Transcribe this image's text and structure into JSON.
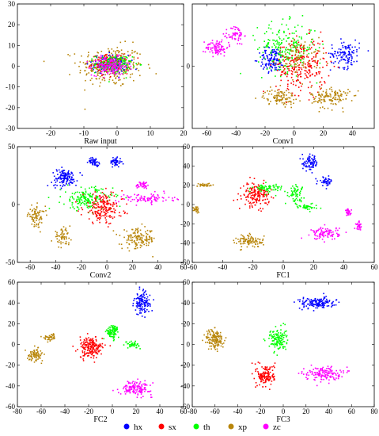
{
  "legend": [
    {
      "name": "hx",
      "color": "#0000ff"
    },
    {
      "name": "sx",
      "color": "#ff0000"
    },
    {
      "name": "th",
      "color": "#00ff00"
    },
    {
      "name": "xp",
      "color": "#b8860b"
    },
    {
      "name": "zc",
      "color": "#ff00ff"
    }
  ],
  "chart_data": [
    {
      "type": "scatter",
      "title": "",
      "xlabel": "Raw input",
      "ylabel": "",
      "xlim": [
        -30,
        20
      ],
      "ylim": [
        -30,
        30
      ],
      "xticks": [
        -20,
        -10,
        0,
        10,
        20
      ],
      "yticks": [
        -30,
        -20,
        -10,
        0,
        10,
        20,
        30
      ],
      "grid": false,
      "clusters": [
        {
          "class": "xp",
          "center": [
            -2,
            0
          ],
          "spread": [
            9,
            9
          ],
          "count": 260
        },
        {
          "class": "hx",
          "center": [
            -2,
            1
          ],
          "spread": [
            5,
            4
          ],
          "count": 150
        },
        {
          "class": "sx",
          "center": [
            -2,
            1
          ],
          "spread": [
            5,
            4
          ],
          "count": 150
        },
        {
          "class": "th",
          "center": [
            -1,
            1
          ],
          "spread": [
            5,
            4
          ],
          "count": 150
        },
        {
          "class": "zc",
          "center": [
            -2,
            0
          ],
          "spread": [
            5,
            4
          ],
          "count": 150
        }
      ]
    },
    {
      "type": "scatter",
      "title": "",
      "xlabel": "Conv1",
      "ylabel": "",
      "xlim": [
        -70,
        55
      ],
      "ylim": [
        -50,
        50
      ],
      "xticks": [
        -60,
        -40,
        -20,
        0,
        20,
        40
      ],
      "yticks": [
        0
      ],
      "grid": false,
      "clusters": [
        {
          "class": "zc",
          "center": [
            -53,
            15
          ],
          "spread": [
            7,
            6
          ],
          "count": 90
        },
        {
          "class": "zc",
          "center": [
            -40,
            25
          ],
          "spread": [
            5,
            7
          ],
          "count": 60
        },
        {
          "class": "hx",
          "center": [
            -15,
            5
          ],
          "spread": [
            8,
            9
          ],
          "count": 120
        },
        {
          "class": "hx",
          "center": [
            35,
            10
          ],
          "spread": [
            9,
            10
          ],
          "count": 120
        },
        {
          "class": "th",
          "center": [
            -5,
            15
          ],
          "spread": [
            18,
            18
          ],
          "count": 220
        },
        {
          "class": "sx",
          "center": [
            5,
            0
          ],
          "spread": [
            16,
            20
          ],
          "count": 240
        },
        {
          "class": "xp",
          "center": [
            -10,
            -25
          ],
          "spread": [
            10,
            6
          ],
          "count": 100
        },
        {
          "class": "xp",
          "center": [
            25,
            -25
          ],
          "spread": [
            12,
            8
          ],
          "count": 130
        },
        {
          "class": "xp",
          "center": [
            5,
            8
          ],
          "spread": [
            14,
            14
          ],
          "count": 80
        }
      ]
    },
    {
      "type": "scatter",
      "title": "",
      "xlabel": "Conv2",
      "ylabel": "",
      "xlim": [
        -70,
        60
      ],
      "ylim": [
        -50,
        50
      ],
      "xticks": [
        -60,
        -40,
        -20,
        0,
        20,
        40,
        60
      ],
      "yticks": [
        -50,
        0,
        50
      ],
      "grid": false,
      "clusters": [
        {
          "class": "hx",
          "center": [
            -33,
            23
          ],
          "spread": [
            9,
            7
          ],
          "count": 130
        },
        {
          "class": "hx",
          "center": [
            -10,
            37
          ],
          "spread": [
            4,
            3
          ],
          "count": 50
        },
        {
          "class": "hx",
          "center": [
            7,
            37
          ],
          "spread": [
            4,
            4
          ],
          "count": 50
        },
        {
          "class": "zc",
          "center": [
            28,
            17
          ],
          "spread": [
            5,
            3
          ],
          "count": 40
        },
        {
          "class": "zc",
          "center": [
            30,
            5
          ],
          "spread": [
            20,
            4
          ],
          "count": 90
        },
        {
          "class": "th",
          "center": [
            -15,
            5
          ],
          "spread": [
            18,
            9
          ],
          "count": 170
        },
        {
          "class": "sx",
          "center": [
            -3,
            -3
          ],
          "spread": [
            14,
            12
          ],
          "count": 190
        },
        {
          "class": "xp",
          "center": [
            -55,
            -10
          ],
          "spread": [
            6,
            8
          ],
          "count": 80
        },
        {
          "class": "xp",
          "center": [
            -35,
            -28
          ],
          "spread": [
            6,
            6
          ],
          "count": 60
        },
        {
          "class": "xp",
          "center": [
            25,
            -30
          ],
          "spread": [
            12,
            8
          ],
          "count": 140
        }
      ]
    },
    {
      "type": "scatter",
      "title": "",
      "xlabel": "FC1",
      "ylabel": "",
      "xlim": [
        -60,
        60
      ],
      "ylim": [
        -60,
        60
      ],
      "xticks": [
        -60,
        -40,
        -20,
        0,
        20,
        40,
        60
      ],
      "yticks": [
        -60,
        -40,
        -20,
        0,
        20,
        40,
        60
      ],
      "grid": false,
      "clusters": [
        {
          "class": "hx",
          "center": [
            18,
            43
          ],
          "spread": [
            5,
            7
          ],
          "count": 80
        },
        {
          "class": "hx",
          "center": [
            28,
            24
          ],
          "spread": [
            4,
            4
          ],
          "count": 40
        },
        {
          "class": "sx",
          "center": [
            -18,
            10
          ],
          "spread": [
            8,
            11
          ],
          "count": 170
        },
        {
          "class": "th",
          "center": [
            -10,
            17
          ],
          "spread": [
            9,
            4
          ],
          "count": 70
        },
        {
          "class": "th",
          "center": [
            8,
            12
          ],
          "spread": [
            5,
            8
          ],
          "count": 60
        },
        {
          "class": "th",
          "center": [
            15,
            -2
          ],
          "spread": [
            7,
            3
          ],
          "count": 40
        },
        {
          "class": "xp",
          "center": [
            -52,
            20
          ],
          "spread": [
            4,
            2
          ],
          "count": 30
        },
        {
          "class": "xp",
          "center": [
            -57,
            -5
          ],
          "spread": [
            2,
            3
          ],
          "count": 25
        },
        {
          "class": "xp",
          "center": [
            -22,
            -38
          ],
          "spread": [
            8,
            6
          ],
          "count": 100
        },
        {
          "class": "zc",
          "center": [
            28,
            -30
          ],
          "spread": [
            8,
            6
          ],
          "count": 100
        },
        {
          "class": "zc",
          "center": [
            43,
            -8
          ],
          "spread": [
            2,
            3
          ],
          "count": 30
        },
        {
          "class": "zc",
          "center": [
            50,
            -22
          ],
          "spread": [
            2,
            4
          ],
          "count": 30
        }
      ]
    },
    {
      "type": "scatter",
      "title": "",
      "xlabel": "FC2",
      "ylabel": "",
      "xlim": [
        -80,
        60
      ],
      "ylim": [
        -60,
        60
      ],
      "xticks": [
        -80,
        -60,
        -40,
        -20,
        0,
        20,
        40,
        60
      ],
      "yticks": [
        -60,
        -40,
        -20,
        0,
        20,
        40,
        60
      ],
      "grid": false,
      "clusters": [
        {
          "class": "hx",
          "center": [
            25,
            40
          ],
          "spread": [
            6,
            10
          ],
          "count": 130
        },
        {
          "class": "sx",
          "center": [
            -18,
            -3
          ],
          "spread": [
            9,
            9
          ],
          "count": 190
        },
        {
          "class": "th",
          "center": [
            0,
            12
          ],
          "spread": [
            5,
            6
          ],
          "count": 90
        },
        {
          "class": "th",
          "center": [
            17,
            0
          ],
          "spread": [
            5,
            3
          ],
          "count": 40
        },
        {
          "class": "xp",
          "center": [
            -65,
            -10
          ],
          "spread": [
            6,
            5
          ],
          "count": 80
        },
        {
          "class": "xp",
          "center": [
            -52,
            7
          ],
          "spread": [
            5,
            3
          ],
          "count": 40
        },
        {
          "class": "zc",
          "center": [
            20,
            -42
          ],
          "spread": [
            12,
            6
          ],
          "count": 140
        }
      ]
    },
    {
      "type": "scatter",
      "title": "",
      "xlabel": "FC3",
      "ylabel": "",
      "xlim": [
        -80,
        80
      ],
      "ylim": [
        -60,
        60
      ],
      "xticks": [
        -80,
        -60,
        -40,
        -20,
        0,
        20,
        40,
        60,
        80
      ],
      "yticks": [
        -60,
        -40,
        -20,
        0,
        20,
        40,
        60
      ],
      "grid": false,
      "clusters": [
        {
          "class": "hx",
          "center": [
            30,
            40
          ],
          "spread": [
            14,
            5
          ],
          "count": 150
        },
        {
          "class": "th",
          "center": [
            -5,
            5
          ],
          "spread": [
            7,
            10
          ],
          "count": 130
        },
        {
          "class": "sx",
          "center": [
            -15,
            -30
          ],
          "spread": [
            7,
            10
          ],
          "count": 150
        },
        {
          "class": "xp",
          "center": [
            -60,
            5
          ],
          "spread": [
            7,
            9
          ],
          "count": 150
        },
        {
          "class": "zc",
          "center": [
            35,
            -28
          ],
          "spread": [
            14,
            6
          ],
          "count": 150
        }
      ]
    }
  ]
}
